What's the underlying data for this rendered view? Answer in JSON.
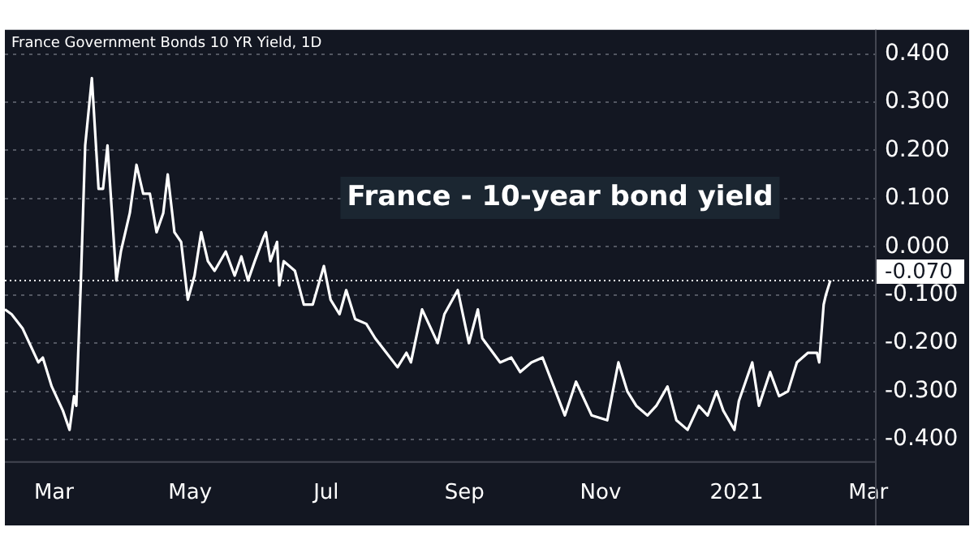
{
  "chart_data": {
    "type": "line",
    "title": "France - 10-year bond yield",
    "subtitle": "France Government Bonds 10 YR Yield, 1D",
    "x": [
      "2020-02-08",
      "2020-02-11",
      "2020-02-16",
      "2020-02-20",
      "2020-02-23",
      "2020-02-25",
      "2020-02-29",
      "2020-03-05",
      "2020-03-08",
      "2020-03-10",
      "2020-03-11",
      "2020-03-13",
      "2020-03-15",
      "2020-03-18",
      "2020-03-21",
      "2020-03-23",
      "2020-03-25",
      "2020-03-29",
      "2020-03-31",
      "2020-04-04",
      "2020-04-07",
      "2020-04-10",
      "2020-04-13",
      "2020-04-16",
      "2020-04-19",
      "2020-04-21",
      "2020-04-24",
      "2020-04-27",
      "2020-04-30",
      "2020-05-03",
      "2020-05-06",
      "2020-05-09",
      "2020-05-12",
      "2020-05-17",
      "2020-05-21",
      "2020-05-24",
      "2020-05-27",
      "2020-05-30",
      "2020-06-03",
      "2020-06-04",
      "2020-06-06",
      "2020-06-09",
      "2020-06-10",
      "2020-06-12",
      "2020-06-17",
      "2020-06-21",
      "2020-06-25",
      "2020-06-30",
      "2020-07-03",
      "2020-07-07",
      "2020-07-10",
      "2020-07-14",
      "2020-07-19",
      "2020-07-23",
      "2020-07-28",
      "2020-08-02",
      "2020-08-06",
      "2020-08-08",
      "2020-08-13",
      "2020-08-20",
      "2020-08-23",
      "2020-08-29",
      "2020-09-03",
      "2020-09-07",
      "2020-09-09",
      "2020-09-17",
      "2020-09-22",
      "2020-09-26",
      "2020-10-01",
      "2020-10-06",
      "2020-10-11",
      "2020-10-16",
      "2020-10-21",
      "2020-10-28",
      "2020-11-04",
      "2020-11-09",
      "2020-11-13",
      "2020-11-17",
      "2020-11-22",
      "2020-11-26",
      "2020-12-01",
      "2020-12-05",
      "2020-12-10",
      "2020-12-15",
      "2020-12-19",
      "2020-12-23",
      "2020-12-26",
      "2020-12-31",
      "2021-01-02",
      "2021-01-08",
      "2021-01-11",
      "2021-01-16",
      "2021-01-20",
      "2021-01-24",
      "2021-01-28",
      "2021-02-02",
      "2021-02-06",
      "2021-02-07",
      "2021-02-09",
      "2021-02-10",
      "2021-02-12"
    ],
    "series": [
      {
        "color": "#ffffff",
        "values": [
          -0.13,
          -0.14,
          -0.17,
          -0.21,
          -0.24,
          -0.23,
          -0.29,
          -0.34,
          -0.38,
          -0.31,
          -0.33,
          -0.08,
          0.21,
          0.35,
          0.12,
          0.12,
          0.21,
          -0.07,
          -0.01,
          0.07,
          0.17,
          0.11,
          0.11,
          0.03,
          0.07,
          0.15,
          0.03,
          0.01,
          -0.11,
          -0.06,
          0.03,
          -0.03,
          -0.05,
          -0.01,
          -0.06,
          -0.02,
          -0.07,
          -0.03,
          0.02,
          0.03,
          -0.03,
          0.01,
          -0.08,
          -0.03,
          -0.05,
          -0.12,
          -0.12,
          -0.04,
          -0.11,
          -0.14,
          -0.09,
          -0.15,
          -0.16,
          -0.19,
          -0.22,
          -0.25,
          -0.22,
          -0.24,
          -0.13,
          -0.2,
          -0.14,
          -0.09,
          -0.2,
          -0.13,
          -0.19,
          -0.24,
          -0.23,
          -0.26,
          -0.24,
          -0.23,
          -0.29,
          -0.35,
          -0.28,
          -0.35,
          -0.36,
          -0.24,
          -0.3,
          -0.33,
          -0.35,
          -0.33,
          -0.29,
          -0.36,
          -0.38,
          -0.33,
          -0.35,
          -0.3,
          -0.34,
          -0.38,
          -0.32,
          -0.24,
          -0.33,
          -0.26,
          -0.31,
          -0.3,
          -0.24,
          -0.22,
          -0.22,
          -0.24,
          -0.12,
          -0.1,
          -0.07
        ]
      }
    ],
    "xlim": [
      "2020-02-08",
      "2021-03-04"
    ],
    "xticks": [
      {
        "value": "2020-03-01",
        "label": "Mar"
      },
      {
        "value": "2020-05-01",
        "label": "May"
      },
      {
        "value": "2020-07-01",
        "label": "Jul"
      },
      {
        "value": "2020-09-01",
        "label": "Sep"
      },
      {
        "value": "2020-11-01",
        "label": "Nov"
      },
      {
        "value": "2021-01-01",
        "label": "2021"
      },
      {
        "value": "2021-03-01",
        "label": "Mar"
      }
    ],
    "ylim": [
      -0.445,
      0.45
    ],
    "yticks": [
      {
        "value": 0.4,
        "label": "0.400"
      },
      {
        "value": 0.3,
        "label": "0.300"
      },
      {
        "value": 0.2,
        "label": "0.200"
      },
      {
        "value": 0.1,
        "label": "0.100"
      },
      {
        "value": 0,
        "label": "0.000"
      },
      {
        "value": -0.1,
        "label": "-0.100"
      },
      {
        "value": -0.2,
        "label": "-0.200"
      },
      {
        "value": -0.3,
        "label": "-0.300"
      },
      {
        "value": -0.4,
        "label": "-0.400"
      }
    ],
    "grid": "y",
    "marker": "none",
    "ref_lines": [
      {
        "axis": "y",
        "value": -0.07,
        "label": "-0.070",
        "line_style": "dotted"
      }
    ]
  }
}
